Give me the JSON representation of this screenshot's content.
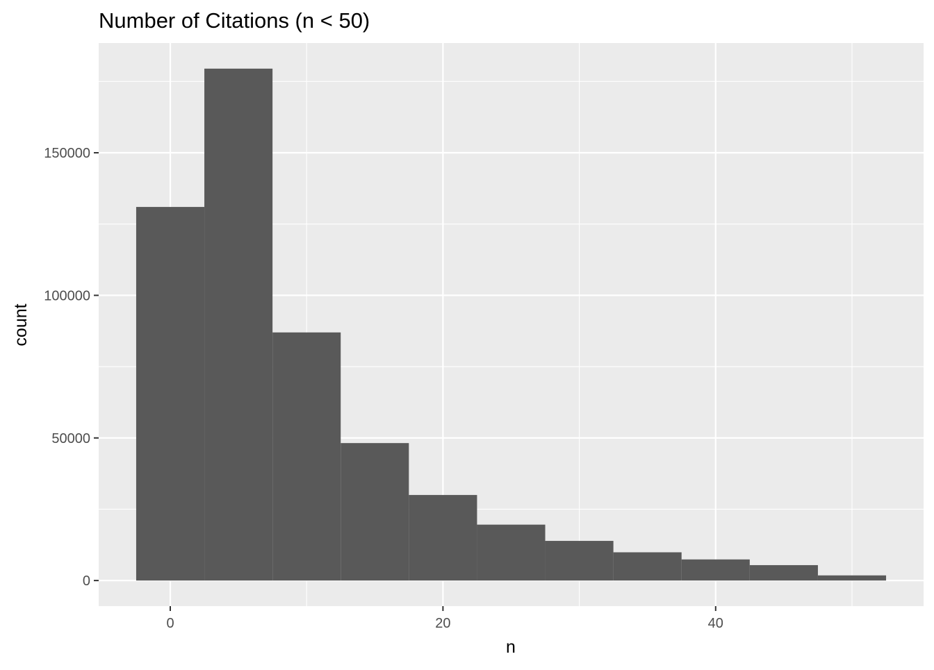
{
  "chart_data": {
    "type": "bar",
    "title": "Number of Citations (n < 50)",
    "xlabel": "n",
    "ylabel": "count",
    "bins": [
      {
        "x_start": -2.5,
        "x_end": 2.5,
        "count": 131000
      },
      {
        "x_start": 2.5,
        "x_end": 7.5,
        "count": 179500
      },
      {
        "x_start": 7.5,
        "x_end": 12.5,
        "count": 87000
      },
      {
        "x_start": 12.5,
        "x_end": 17.5,
        "count": 48200
      },
      {
        "x_start": 17.5,
        "x_end": 22.5,
        "count": 30000
      },
      {
        "x_start": 22.5,
        "x_end": 27.5,
        "count": 19600
      },
      {
        "x_start": 27.5,
        "x_end": 32.5,
        "count": 13900
      },
      {
        "x_start": 32.5,
        "x_end": 37.5,
        "count": 9900
      },
      {
        "x_start": 37.5,
        "x_end": 42.5,
        "count": 7400
      },
      {
        "x_start": 42.5,
        "x_end": 47.5,
        "count": 5400
      },
      {
        "x_start": 47.5,
        "x_end": 52.5,
        "count": 1800
      }
    ],
    "xlim": [
      -5.25,
      55.25
    ],
    "ylim": [
      -8975,
      188475
    ],
    "x_ticks": [
      0,
      20,
      40
    ],
    "x_tick_labels": [
      "0",
      "20",
      "40"
    ],
    "x_minor_ticks": [
      10,
      30,
      50
    ],
    "y_ticks": [
      0,
      50000,
      100000,
      150000
    ],
    "y_tick_labels": [
      "0",
      "50000",
      "100000",
      "150000"
    ],
    "y_minor_ticks": [
      25000,
      75000,
      125000,
      175000
    ],
    "grid": true,
    "colors": {
      "bar_fill": "#595959",
      "panel_background": "#ebebeb",
      "grid_line": "#ffffff",
      "tick_text": "#4d4d4d",
      "axis_title": "#000000"
    }
  }
}
